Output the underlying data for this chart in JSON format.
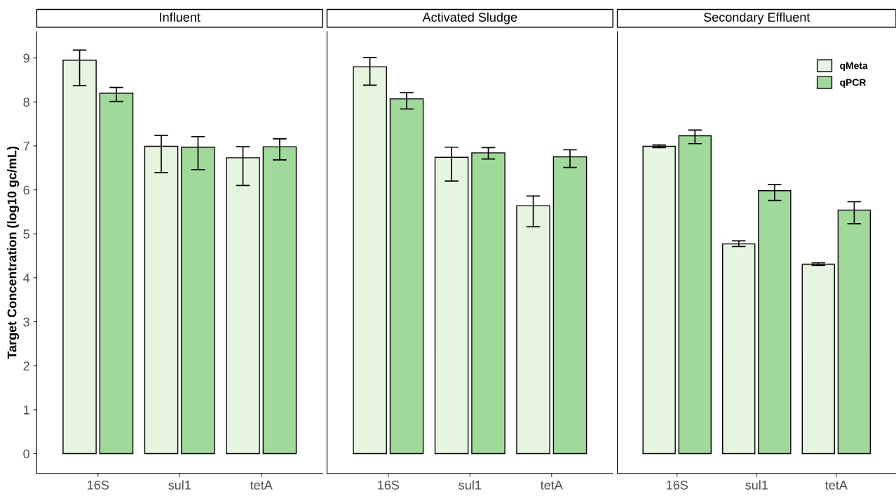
{
  "chart_data": [
    {
      "type": "bar",
      "title": "Influent",
      "ylabel": "Target Concentration (log10 gc/mL)",
      "categories": [
        "16S",
        "sul1",
        "tetA"
      ],
      "ylim": [
        -0.45,
        9.6
      ],
      "yticks": [
        0,
        1,
        2,
        3,
        4,
        5,
        6,
        7,
        8,
        9
      ],
      "grid": false,
      "legend": false,
      "series": [
        {
          "color": "#e5f5e0",
          "values": [
            8.95,
            6.99,
            6.73
          ],
          "errors": [
            [
              8.37,
              9.18
            ],
            [
              6.39,
              7.24
            ],
            [
              6.1,
              6.98
            ]
          ]
        },
        {
          "color": "#a1d99b",
          "values": [
            8.2,
            6.97,
            6.98
          ],
          "errors": [
            [
              8.01,
              8.33
            ],
            [
              6.46,
              7.21
            ],
            [
              6.68,
              7.16
            ]
          ]
        }
      ]
    },
    {
      "type": "bar",
      "title": "Activated Sludge",
      "categories": [
        "16S",
        "sul1",
        "tetA"
      ],
      "ylim": [
        -0.45,
        9.6
      ],
      "yticks": [
        0,
        1,
        2,
        3,
        4,
        5,
        6,
        7,
        8,
        9
      ],
      "tick_labels": "x",
      "grid": false,
      "legend": false,
      "series": [
        {
          "color": "#e5f5e0",
          "values": [
            8.8,
            6.74,
            5.64
          ],
          "errors": [
            [
              8.38,
              9.01
            ],
            [
              6.2,
              6.97
            ],
            [
              5.16,
              5.86
            ]
          ]
        },
        {
          "color": "#a1d99b",
          "values": [
            8.07,
            6.84,
            6.75
          ],
          "errors": [
            [
              7.84,
              8.21
            ],
            [
              6.7,
              6.96
            ],
            [
              6.51,
              6.91
            ]
          ]
        }
      ]
    },
    {
      "type": "bar",
      "title": "Secondary Effluent",
      "categories": [
        "16S",
        "sul1",
        "tetA"
      ],
      "ylim": [
        -0.45,
        9.6
      ],
      "yticks": [
        0,
        1,
        2,
        3,
        4,
        5,
        6,
        7,
        8,
        9
      ],
      "tick_labels": "x",
      "grid": false,
      "legend": "top right",
      "series": [
        {
          "name": "qMeta",
          "color": "#e5f5e0",
          "values": [
            6.99,
            4.77,
            4.31
          ],
          "errors": [
            [
              6.96,
              7.02
            ],
            [
              4.71,
              4.84
            ],
            [
              4.28,
              4.34
            ]
          ]
        },
        {
          "name": "qPCR",
          "color": "#a1d99b",
          "values": [
            7.23,
            5.98,
            5.54
          ],
          "errors": [
            [
              7.05,
              7.36
            ],
            [
              5.76,
              6.12
            ],
            [
              5.23,
              5.73
            ]
          ]
        }
      ]
    }
  ]
}
